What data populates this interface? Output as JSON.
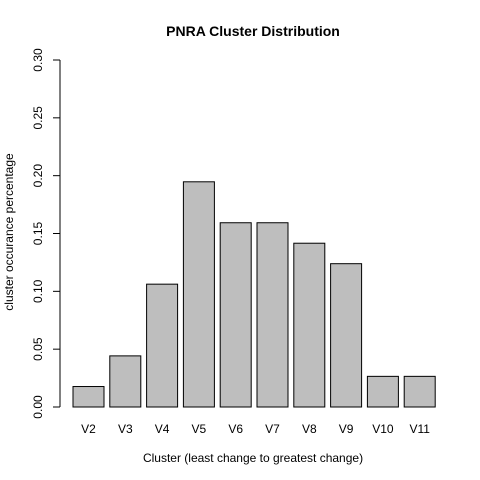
{
  "chart_data": {
    "type": "bar",
    "title": "PNRA Cluster Distribution",
    "xlabel": "Cluster (least change to greatest change)",
    "ylabel": "cluster occurance percentage",
    "categories": [
      "V2",
      "V3",
      "V4",
      "V5",
      "V6",
      "V7",
      "V8",
      "V9",
      "V10",
      "V11"
    ],
    "values": [
      0.0177,
      0.0442,
      0.1062,
      0.1947,
      0.1593,
      0.1593,
      0.1416,
      0.1239,
      0.0265,
      0.0265
    ],
    "ylim": [
      0,
      0.3
    ],
    "yticks": [
      "0.00",
      "0.05",
      "0.10",
      "0.15",
      "0.20",
      "0.25",
      "0.30"
    ],
    "grid": false,
    "legend": "none",
    "bar_color": "#bebebe",
    "bar_edge_color": "#000000"
  }
}
